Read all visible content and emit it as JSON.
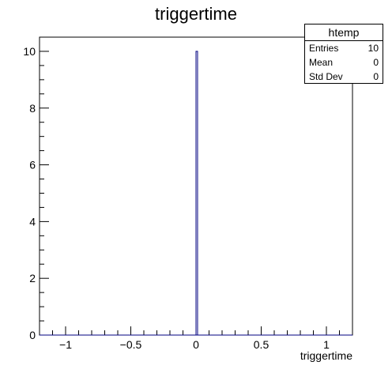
{
  "chart_data": {
    "type": "bar",
    "title": "triggertime",
    "xlabel": "triggertime",
    "ylabel": "",
    "xlim": [
      -1.2,
      1.2
    ],
    "ylim": [
      0,
      10.5
    ],
    "x_ticks": [
      -1,
      -0.5,
      0,
      0.5,
      1
    ],
    "x_tick_labels": [
      "−1",
      "−0.5",
      "0",
      "0.5",
      "1"
    ],
    "y_ticks": [
      0,
      2,
      4,
      6,
      8,
      10
    ],
    "y_tick_labels": [
      "0",
      "2",
      "4",
      "6",
      "8",
      "10"
    ],
    "bins": [
      {
        "low": 0.0,
        "high": 0.012,
        "value": 10
      }
    ],
    "grid": false,
    "legend": "none",
    "bar_color": "#000080"
  },
  "stats": {
    "name": "htemp",
    "rows": [
      {
        "label": "Entries",
        "value": "10"
      },
      {
        "label": "Mean",
        "value": "0"
      },
      {
        "label": "Std Dev",
        "value": "0"
      }
    ]
  }
}
